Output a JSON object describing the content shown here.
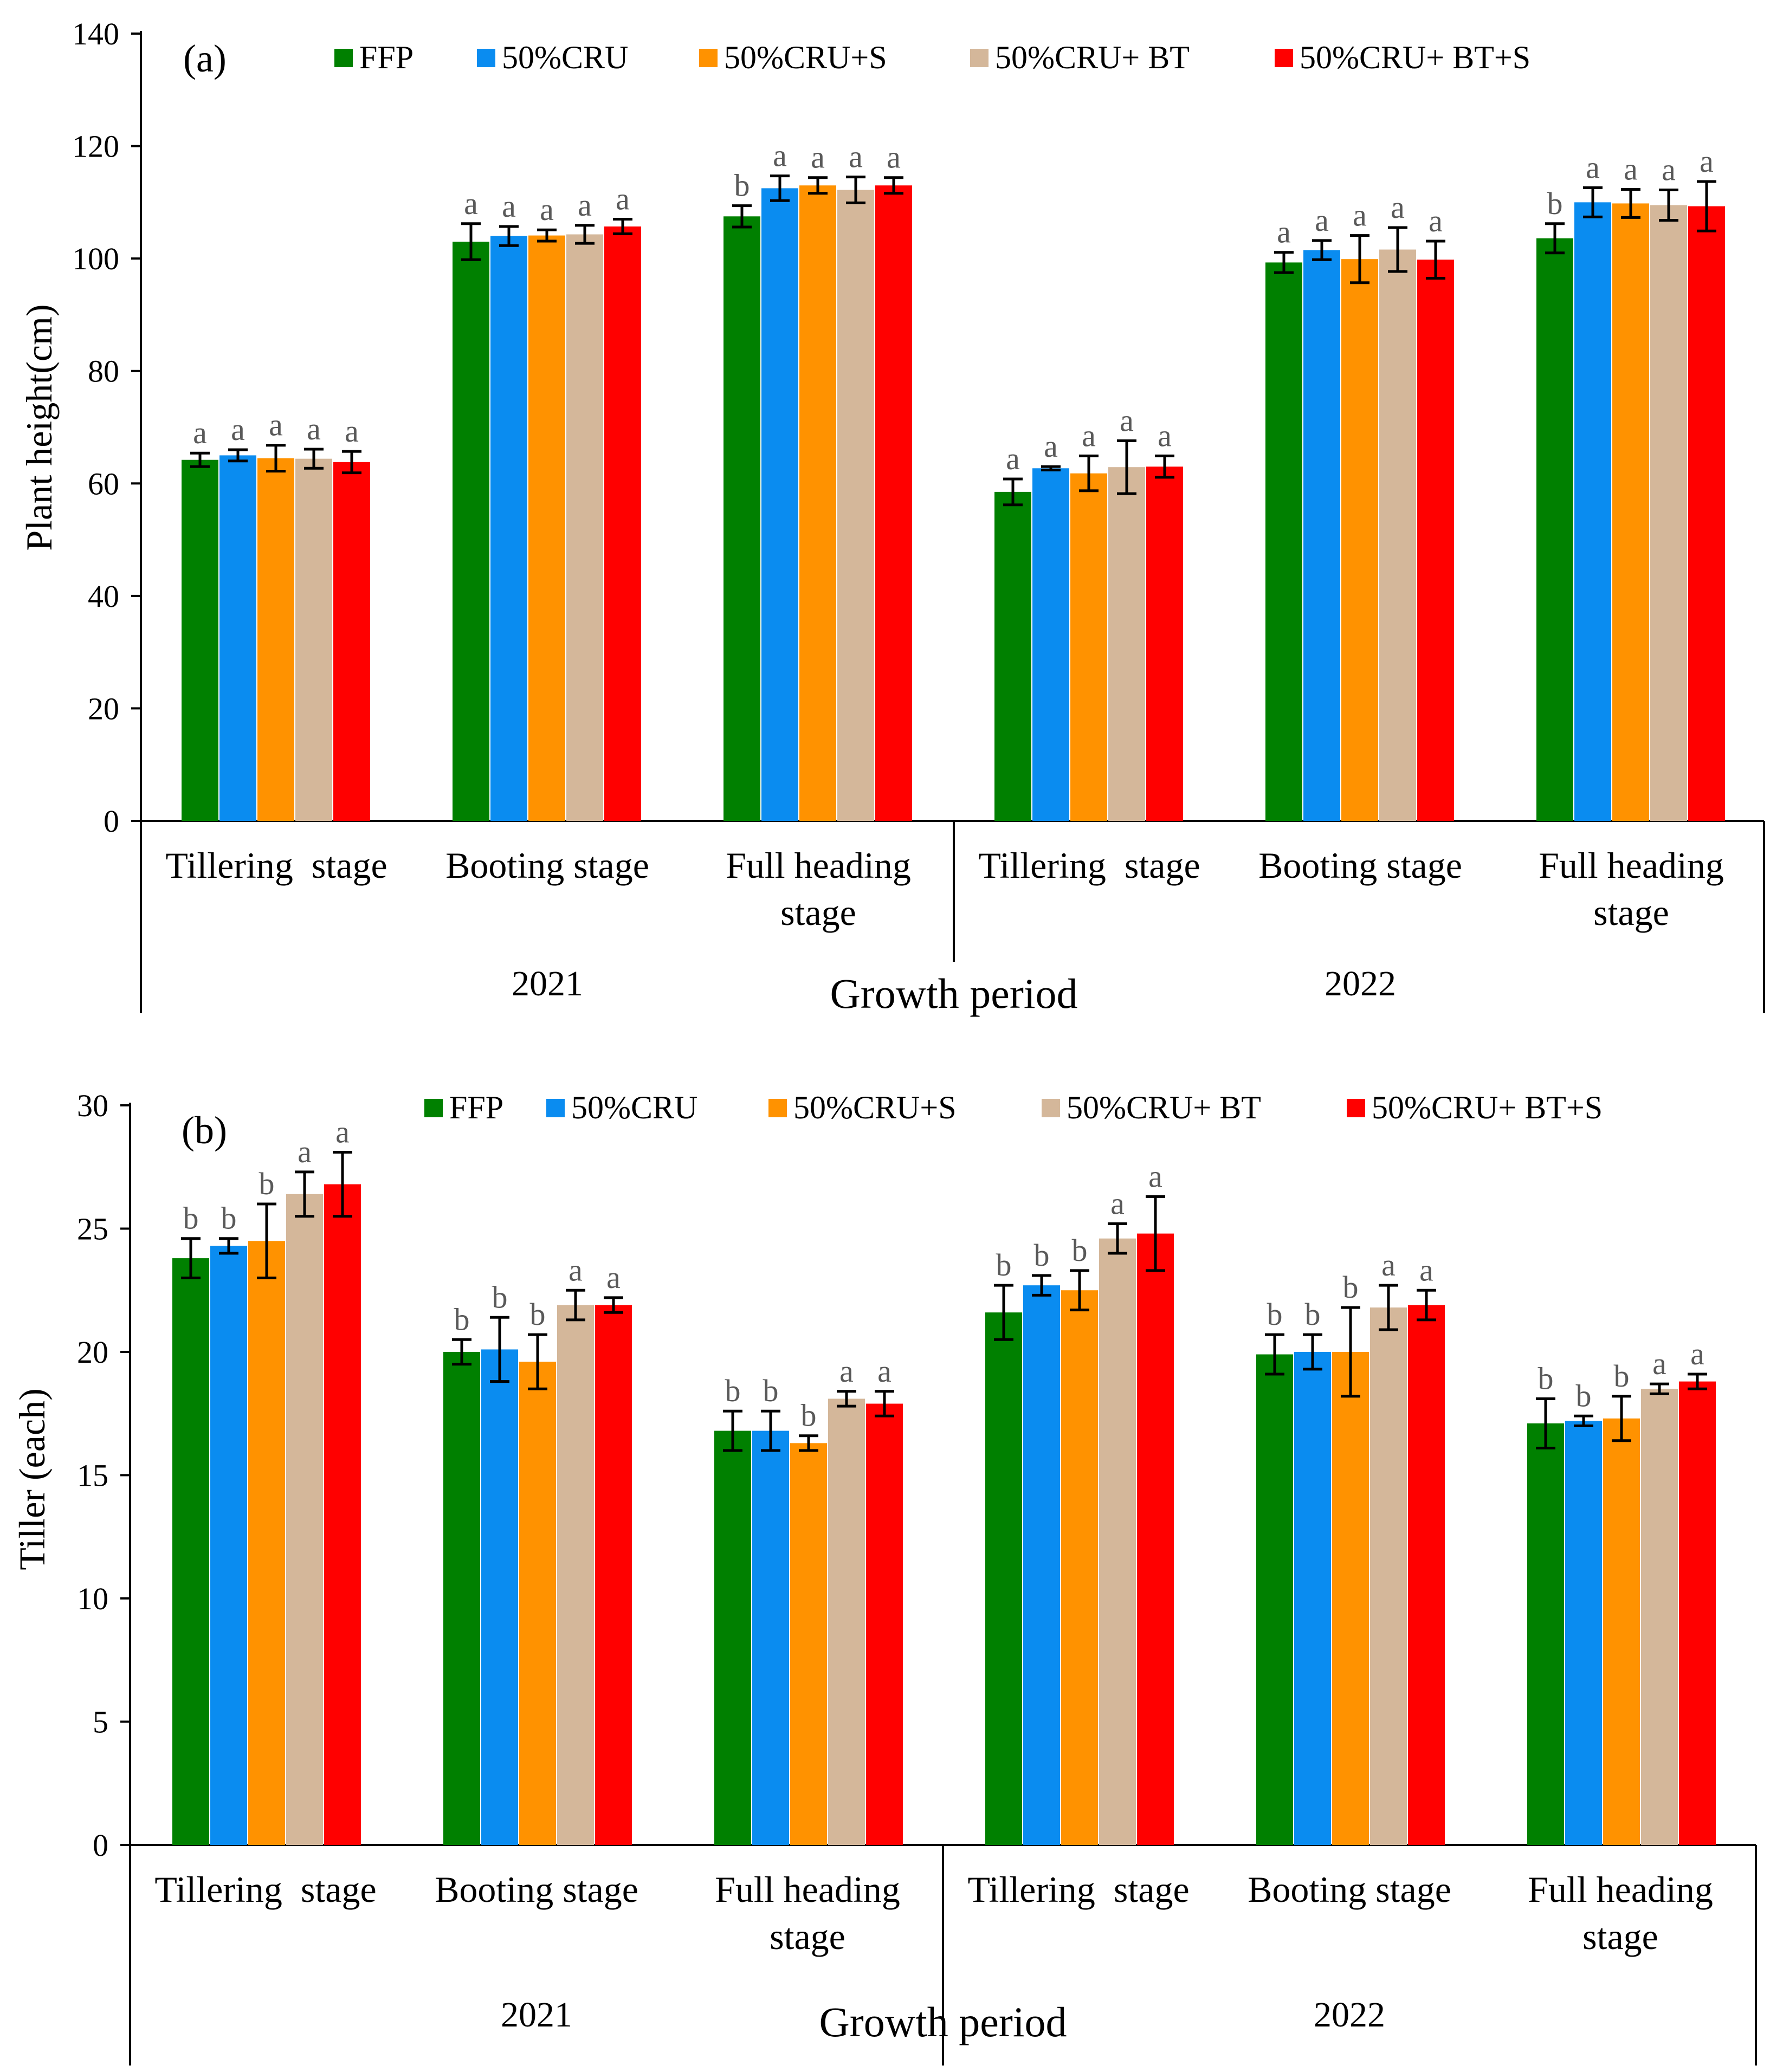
{
  "colors": {
    "FFP": "#008000",
    "50%CRU": "#0a8cf0",
    "50%CRU+S": "#ff9200",
    "50%CRU+ BT": "#d4b79a",
    "50%CRU+ BT+S": "#ff0000",
    "letter": "#595959",
    "axis": "#000000"
  },
  "chart_data": [
    {
      "type": "bar",
      "panel_label": "(a)",
      "title": "",
      "ylabel": "Plant height(cm)",
      "xlabel": "Growth period",
      "ylim": [
        0,
        140
      ],
      "yticks": [
        0,
        20,
        40,
        60,
        80,
        100,
        120,
        140
      ],
      "legend": [
        "FFP",
        "50%CRU",
        "50%CRU+S",
        "50%CRU+ BT",
        "50%CRU+ BT+S"
      ],
      "legend_position": "top",
      "groups": [
        {
          "year": "2021",
          "stages": [
            "Tillering  stage",
            "Booting stage",
            "Full heading stage"
          ]
        },
        {
          "year": "2022",
          "stages": [
            "Tillering  stage",
            "Booting stage",
            "Full heading stage"
          ]
        }
      ],
      "categories": [
        {
          "label": [
            "Tillering  stage"
          ],
          "year": "2021"
        },
        {
          "label": [
            "Booting stage"
          ],
          "year": "2021"
        },
        {
          "label": [
            "Full heading",
            "stage"
          ],
          "year": "2021"
        },
        {
          "label": [
            "Tillering  stage"
          ],
          "year": "2022"
        },
        {
          "label": [
            "Booting stage"
          ],
          "year": "2022"
        },
        {
          "label": [
            "Full heading",
            "stage"
          ],
          "year": "2022"
        }
      ],
      "series": [
        {
          "name": "FFP",
          "values": [
            64.2,
            103.0,
            107.5,
            58.5,
            99.3,
            103.6
          ],
          "errors": [
            1.2,
            3.2,
            1.9,
            2.3,
            1.8,
            2.6
          ],
          "letters": [
            "a",
            "a",
            "b",
            "a",
            "a",
            "b"
          ]
        },
        {
          "name": "50%CRU",
          "values": [
            65.0,
            104.0,
            112.5,
            62.7,
            101.5,
            110.0
          ],
          "errors": [
            1.0,
            1.7,
            2.2,
            0.3,
            1.7,
            2.6
          ],
          "letters": [
            "a",
            "a",
            "a",
            "a",
            "a",
            "a"
          ]
        },
        {
          "name": "50%CRU+S",
          "values": [
            64.5,
            104.1,
            113.0,
            61.8,
            99.9,
            109.8
          ],
          "errors": [
            2.3,
            1.0,
            1.4,
            3.1,
            4.2,
            2.5
          ],
          "letters": [
            "a",
            "a",
            "a",
            "a",
            "a",
            "a"
          ]
        },
        {
          "name": "50%CRU+ BT",
          "values": [
            64.4,
            104.3,
            112.2,
            62.9,
            101.6,
            109.5
          ],
          "errors": [
            1.7,
            1.6,
            2.3,
            4.7,
            3.9,
            2.7
          ],
          "letters": [
            "a",
            "a",
            "a",
            "a",
            "a",
            "a"
          ]
        },
        {
          "name": "50%CRU+ BT+S",
          "values": [
            63.8,
            105.7,
            113.0,
            63.0,
            99.8,
            109.3
          ],
          "errors": [
            1.9,
            1.3,
            1.4,
            1.9,
            3.3,
            4.4
          ],
          "letters": [
            "a",
            "a",
            "a",
            "a",
            "a",
            "a"
          ]
        }
      ]
    },
    {
      "type": "bar",
      "panel_label": "(b)",
      "title": "",
      "ylabel": "Tiller (each)",
      "xlabel": "Growth period",
      "ylim": [
        0,
        30
      ],
      "yticks": [
        0,
        5,
        10,
        15,
        20,
        25,
        30
      ],
      "legend": [
        "FFP",
        "50%CRU",
        "50%CRU+S",
        "50%CRU+ BT",
        "50%CRU+ BT+S"
      ],
      "legend_position": "top",
      "groups": [
        {
          "year": "2021",
          "stages": [
            "Tillering  stage",
            "Booting stage",
            "Full heading stage"
          ]
        },
        {
          "year": "2022",
          "stages": [
            "Tillering  stage",
            "Booting stage",
            "Full heading stage"
          ]
        }
      ],
      "categories": [
        {
          "label": [
            "Tillering  stage"
          ],
          "year": "2021"
        },
        {
          "label": [
            "Booting stage"
          ],
          "year": "2021"
        },
        {
          "label": [
            "Full heading",
            "stage"
          ],
          "year": "2021"
        },
        {
          "label": [
            "Tillering  stage"
          ],
          "year": "2022"
        },
        {
          "label": [
            "Booting stage"
          ],
          "year": "2022"
        },
        {
          "label": [
            "Full heading",
            "stage"
          ],
          "year": "2022"
        }
      ],
      "series": [
        {
          "name": "FFP",
          "values": [
            23.8,
            20.0,
            16.8,
            21.6,
            19.9,
            17.1
          ],
          "errors": [
            0.8,
            0.5,
            0.8,
            1.1,
            0.8,
            1.0
          ],
          "letters": [
            "b",
            "b",
            "b",
            "b",
            "b",
            "b"
          ]
        },
        {
          "name": "50%CRU",
          "values": [
            24.3,
            20.1,
            16.8,
            22.7,
            20.0,
            17.2
          ],
          "errors": [
            0.3,
            1.3,
            0.8,
            0.4,
            0.7,
            0.2
          ],
          "letters": [
            "b",
            "b",
            "b",
            "b",
            "b",
            "b"
          ]
        },
        {
          "name": "50%CRU+S",
          "values": [
            24.5,
            19.6,
            16.3,
            22.5,
            20.0,
            17.3
          ],
          "errors": [
            1.5,
            1.1,
            0.3,
            0.8,
            1.8,
            0.9
          ],
          "letters": [
            "b",
            "b",
            "b",
            "b",
            "b",
            "b"
          ]
        },
        {
          "name": "50%CRU+ BT",
          "values": [
            26.4,
            21.9,
            18.1,
            24.6,
            21.8,
            18.5
          ],
          "errors": [
            0.9,
            0.6,
            0.3,
            0.6,
            0.9,
            0.2
          ],
          "letters": [
            "a",
            "a",
            "a",
            "a",
            "a",
            "a"
          ]
        },
        {
          "name": "50%CRU+ BT+S",
          "values": [
            26.8,
            21.9,
            17.9,
            24.8,
            21.9,
            18.8
          ],
          "errors": [
            1.3,
            0.3,
            0.5,
            1.5,
            0.6,
            0.3
          ],
          "letters": [
            "a",
            "a",
            "a",
            "a",
            "a",
            "a"
          ]
        }
      ]
    }
  ]
}
